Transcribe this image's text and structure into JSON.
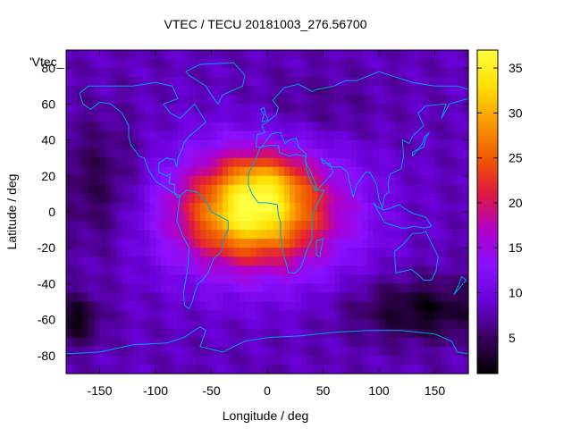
{
  "chart_data": {
    "type": "heatmap",
    "title": "VTEC / TECU 20181003_276.56700",
    "xlabel": "Longitude / deg",
    "ylabel": "Latitude / deg",
    "legend_label": "'Vtec_",
    "xlim": [
      -180,
      180
    ],
    "ylim": [
      -90,
      90
    ],
    "x_ticks": [
      -150,
      -100,
      -50,
      0,
      50,
      100,
      150
    ],
    "y_ticks": [
      -80,
      -60,
      -40,
      -20,
      0,
      20,
      40,
      60,
      80
    ],
    "colorbar": {
      "range": [
        1,
        37
      ],
      "ticks": [
        5,
        10,
        15,
        20,
        25,
        30,
        35
      ]
    },
    "colormap": [
      "#000000",
      "#3a0060",
      "#6a00d8",
      "#8a10ff",
      "#b000c8",
      "#e01a40",
      "#f05a00",
      "#fa9a00",
      "#ffe000",
      "#ffff40"
    ],
    "coastline_color": "#00a0e0",
    "field": {
      "background": 8,
      "blobs": [
        {
          "lon": -10,
          "lat": 0,
          "sx": 55,
          "sy": 24,
          "amp": 22
        },
        {
          "lon": -5,
          "lat": 15,
          "sx": 25,
          "sy": 12,
          "amp": 8
        },
        {
          "lon": -20,
          "lat": -5,
          "sx": 28,
          "sy": 12,
          "amp": 5
        },
        {
          "lon": 140,
          "lat": -55,
          "sx": 45,
          "sy": 12,
          "amp": -6
        },
        {
          "lon": -170,
          "lat": -60,
          "sx": 15,
          "sy": 10,
          "amp": -6
        },
        {
          "lon": -150,
          "lat": 15,
          "sx": 30,
          "sy": 25,
          "amp": -4
        },
        {
          "lon": 40,
          "lat": 55,
          "sx": 40,
          "sy": 15,
          "amp": -2
        }
      ]
    }
  }
}
